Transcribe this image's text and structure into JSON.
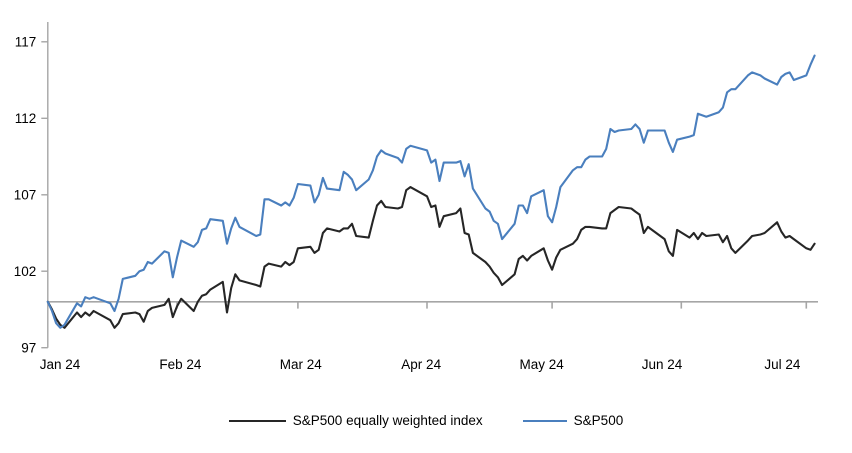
{
  "chart_data": {
    "type": "line",
    "title": "",
    "xlabel": "",
    "ylabel": "",
    "grid": false,
    "legend_position": "bottom-center",
    "baseline_value": 100,
    "y_axis": {
      "ticks": [
        97,
        102,
        107,
        112,
        117
      ],
      "range": [
        97,
        117
      ]
    },
    "x_axis": {
      "tick_labels": [
        "Jan 24",
        "Feb 24",
        "Mar 24",
        "Apr 24",
        "May 24",
        "Jun 24",
        "Jul 24"
      ],
      "month_tick_dates": [
        "2024-02-01",
        "2024-03-01",
        "2024-04-01",
        "2024-05-01",
        "2024-06-01",
        "2024-07-01"
      ]
    },
    "colors": {
      "equal_weight": "#262626",
      "sp500": "#4a7fbe",
      "axis_gray": "#a6a6a6",
      "text": "#000000"
    },
    "dates": [
      "2024-01-01",
      "2024-01-02",
      "2024-01-03",
      "2024-01-04",
      "2024-01-05",
      "2024-01-08",
      "2024-01-09",
      "2024-01-10",
      "2024-01-11",
      "2024-01-12",
      "2024-01-16",
      "2024-01-17",
      "2024-01-18",
      "2024-01-19",
      "2024-01-22",
      "2024-01-23",
      "2024-01-24",
      "2024-01-25",
      "2024-01-26",
      "2024-01-29",
      "2024-01-30",
      "2024-01-31",
      "2024-02-01",
      "2024-02-02",
      "2024-02-05",
      "2024-02-06",
      "2024-02-07",
      "2024-02-08",
      "2024-02-09",
      "2024-02-12",
      "2024-02-13",
      "2024-02-14",
      "2024-02-15",
      "2024-02-16",
      "2024-02-20",
      "2024-02-21",
      "2024-02-22",
      "2024-02-23",
      "2024-02-26",
      "2024-02-27",
      "2024-02-28",
      "2024-02-29",
      "2024-03-01",
      "2024-03-04",
      "2024-03-05",
      "2024-03-06",
      "2024-03-07",
      "2024-03-08",
      "2024-03-11",
      "2024-03-12",
      "2024-03-13",
      "2024-03-14",
      "2024-03-15",
      "2024-03-18",
      "2024-03-19",
      "2024-03-20",
      "2024-03-21",
      "2024-03-22",
      "2024-03-25",
      "2024-03-26",
      "2024-03-27",
      "2024-03-28",
      "2024-04-01",
      "2024-04-02",
      "2024-04-03",
      "2024-04-04",
      "2024-04-05",
      "2024-04-08",
      "2024-04-09",
      "2024-04-10",
      "2024-04-11",
      "2024-04-12",
      "2024-04-15",
      "2024-04-16",
      "2024-04-17",
      "2024-04-18",
      "2024-04-19",
      "2024-04-22",
      "2024-04-23",
      "2024-04-24",
      "2024-04-25",
      "2024-04-26",
      "2024-04-29",
      "2024-04-30",
      "2024-05-01",
      "2024-05-02",
      "2024-05-03",
      "2024-05-06",
      "2024-05-07",
      "2024-05-08",
      "2024-05-09",
      "2024-05-10",
      "2024-05-13",
      "2024-05-14",
      "2024-05-15",
      "2024-05-16",
      "2024-05-17",
      "2024-05-20",
      "2024-05-21",
      "2024-05-22",
      "2024-05-23",
      "2024-05-24",
      "2024-05-28",
      "2024-05-29",
      "2024-05-30",
      "2024-05-31",
      "2024-06-03",
      "2024-06-04",
      "2024-06-05",
      "2024-06-06",
      "2024-06-07",
      "2024-06-10",
      "2024-06-11",
      "2024-06-12",
      "2024-06-13",
      "2024-06-14",
      "2024-06-17",
      "2024-06-18",
      "2024-06-20",
      "2024-06-21",
      "2024-06-24",
      "2024-06-25",
      "2024-06-26",
      "2024-06-27",
      "2024-06-28",
      "2024-07-01",
      "2024-07-02",
      "2024-07-03"
    ],
    "series": [
      {
        "name": "S&P500 equally weighted index",
        "color_key": "equal_weight",
        "values": [
          100.0,
          99.5,
          98.9,
          98.5,
          98.3,
          99.3,
          99.0,
          99.3,
          99.1,
          99.4,
          98.8,
          98.3,
          98.6,
          99.2,
          99.3,
          99.2,
          98.7,
          99.4,
          99.6,
          99.8,
          100.2,
          99.0,
          99.7,
          100.2,
          99.4,
          100.0,
          100.4,
          100.5,
          100.8,
          101.3,
          99.3,
          100.9,
          101.8,
          101.4,
          101.1,
          101.0,
          102.3,
          102.5,
          102.3,
          102.6,
          102.4,
          102.6,
          103.5,
          103.6,
          103.2,
          103.4,
          104.5,
          104.8,
          104.6,
          104.8,
          104.8,
          105.1,
          104.3,
          104.2,
          105.3,
          106.3,
          106.6,
          106.2,
          106.1,
          106.2,
          107.3,
          107.5,
          106.9,
          106.2,
          106.3,
          104.9,
          105.6,
          105.8,
          106.1,
          104.5,
          104.4,
          103.2,
          102.6,
          102.3,
          101.9,
          101.6,
          101.1,
          101.8,
          102.8,
          103.0,
          102.7,
          103.0,
          103.5,
          102.7,
          102.1,
          102.9,
          103.4,
          103.8,
          104.1,
          104.7,
          104.9,
          104.9,
          104.8,
          104.8,
          105.8,
          106.0,
          106.2,
          106.1,
          105.9,
          105.7,
          104.5,
          104.9,
          104.1,
          103.3,
          103.0,
          104.7,
          104.2,
          104.5,
          104.1,
          104.5,
          104.3,
          104.4,
          103.9,
          104.3,
          103.5,
          103.2,
          104.0,
          104.3,
          104.4,
          104.5,
          105.2,
          104.6,
          104.2,
          104.3,
          104.1,
          103.5,
          103.4,
          103.8
        ]
      },
      {
        "name": "S&P500",
        "color_key": "sp500",
        "values": [
          100.0,
          99.4,
          98.6,
          98.3,
          98.5,
          99.9,
          99.7,
          100.3,
          100.2,
          100.3,
          99.9,
          99.4,
          100.2,
          101.5,
          101.7,
          102.0,
          102.1,
          102.6,
          102.5,
          103.3,
          103.2,
          101.6,
          102.9,
          104.0,
          103.6,
          103.9,
          104.7,
          104.8,
          105.4,
          105.3,
          103.8,
          104.8,
          105.5,
          104.9,
          104.3,
          104.4,
          106.7,
          106.7,
          106.3,
          106.5,
          106.3,
          106.8,
          107.7,
          107.6,
          106.5,
          107.0,
          108.1,
          107.4,
          107.3,
          108.5,
          108.3,
          108.0,
          107.3,
          108.0,
          108.6,
          109.5,
          109.9,
          109.7,
          109.4,
          109.1,
          110.0,
          110.2,
          109.9,
          109.1,
          109.3,
          107.9,
          109.1,
          109.1,
          109.2,
          108.2,
          109.0,
          107.4,
          106.1,
          105.9,
          105.3,
          105.1,
          104.1,
          105.1,
          106.3,
          106.3,
          105.8,
          106.9,
          107.3,
          105.6,
          105.2,
          106.2,
          107.5,
          108.6,
          108.8,
          108.8,
          109.3,
          109.5,
          109.5,
          110.0,
          111.3,
          111.1,
          111.2,
          111.3,
          111.6,
          111.3,
          110.4,
          111.2,
          111.2,
          110.4,
          109.8,
          110.6,
          110.8,
          110.9,
          112.3,
          112.2,
          112.1,
          112.4,
          112.7,
          113.7,
          113.9,
          113.9,
          114.8,
          115.0,
          114.8,
          114.6,
          114.2,
          114.7,
          114.9,
          115.0,
          114.5,
          114.8,
          115.5,
          116.1
        ]
      }
    ]
  }
}
